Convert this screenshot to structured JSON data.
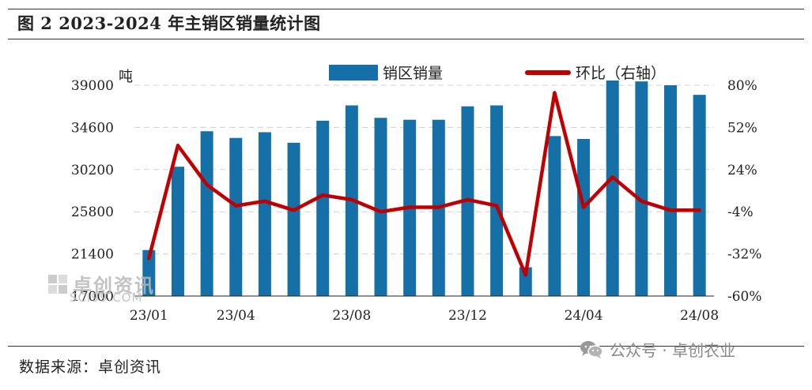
{
  "header": {
    "title": "图 2 2023-2024 年主销区销量统计图"
  },
  "footer": {
    "source": "数据来源：卓创资讯"
  },
  "wechat": {
    "account": "公众号 · 卓创农业",
    "icon": "wechat-icon"
  },
  "watermark": {
    "name": "卓创资讯",
    "url": "SCI99.COM"
  },
  "colors": {
    "bar": "#1670a8",
    "line": "#c00000",
    "grid": "#d0d0d0",
    "axis": "#222222"
  },
  "chart_data": {
    "type": "bar",
    "title": "",
    "y_unit": "吨",
    "legend": [
      {
        "label": "销区销量",
        "kind": "bar"
      },
      {
        "label": "环比（右轴）",
        "kind": "line"
      }
    ],
    "categories": [
      "23/01",
      "23/02",
      "23/03",
      "23/04",
      "23/05",
      "23/06",
      "23/07",
      "23/08",
      "23/09",
      "23/10",
      "23/11",
      "23/12",
      "24/01",
      "24/02",
      "24/03",
      "24/04",
      "24/05",
      "24/06",
      "24/07",
      "24/08"
    ],
    "x_tick_labels": [
      "23/01",
      "23/04",
      "23/08",
      "23/12",
      "24/04",
      "24/08"
    ],
    "y_left": {
      "ticks": [
        17000,
        21400,
        25800,
        30200,
        34600,
        39000
      ],
      "range": [
        17000,
        39000
      ]
    },
    "y_right": {
      "ticks": [
        "-60%",
        "-32%",
        "-4%",
        "24%",
        "52%",
        "80%"
      ],
      "range": [
        -60,
        80
      ]
    },
    "series": [
      {
        "name": "销区销量",
        "axis": "left",
        "type": "bar",
        "values": [
          21800,
          30500,
          34200,
          33500,
          34100,
          33000,
          35300,
          36900,
          35600,
          35400,
          35400,
          36800,
          36900,
          20000,
          33700,
          33400,
          39500,
          39400,
          39000,
          38000
        ]
      },
      {
        "name": "环比（右轴）",
        "axis": "right",
        "type": "line",
        "values": [
          -35,
          40,
          14,
          0,
          3,
          -3,
          7,
          4,
          -4,
          -1,
          -1,
          4,
          0,
          -46,
          75,
          -1,
          19,
          3,
          -3,
          -3
        ]
      }
    ]
  }
}
